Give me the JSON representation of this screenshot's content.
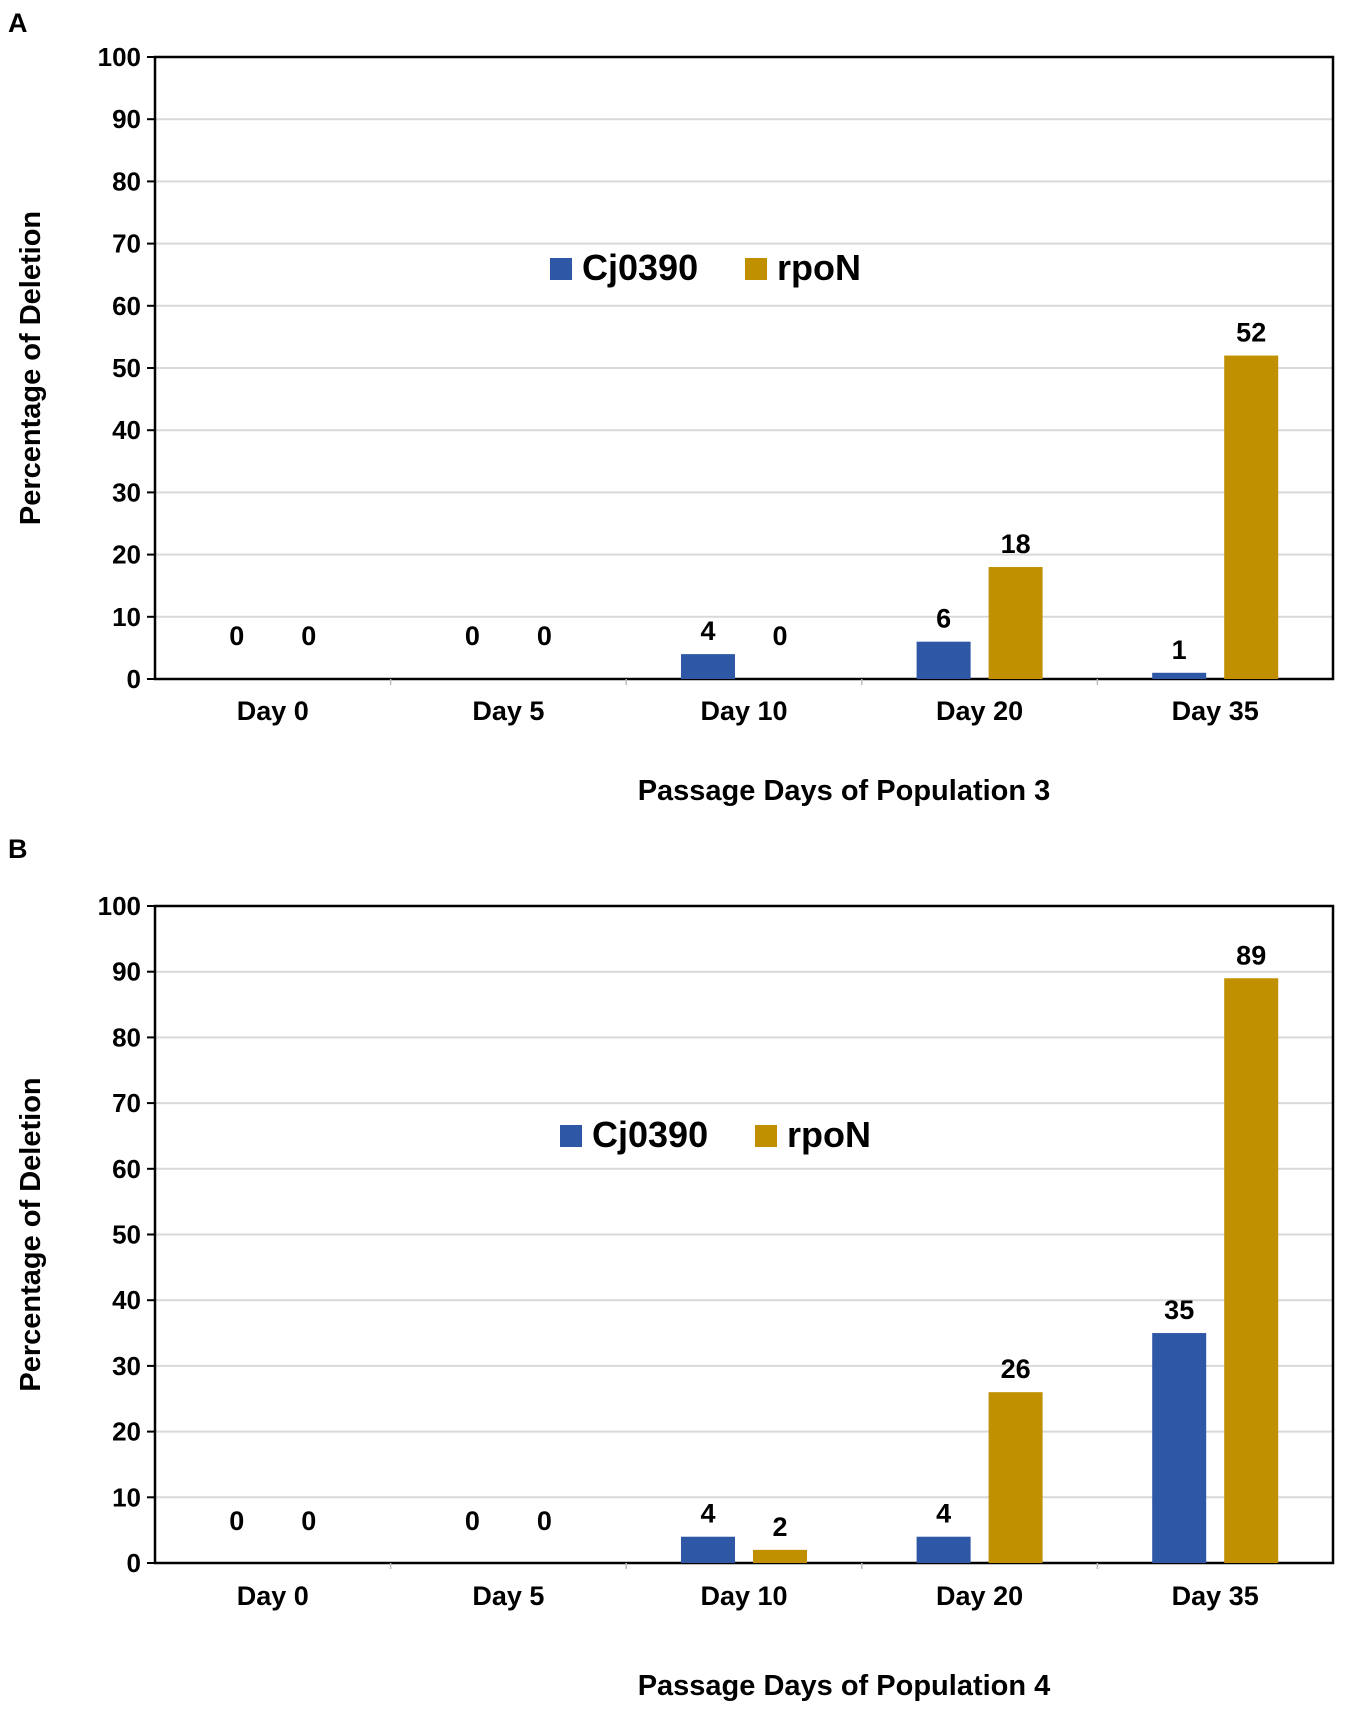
{
  "chart_data": [
    {
      "panel_label": "A",
      "type": "bar",
      "title": "",
      "xlabel": "Passage Days of Population 3",
      "ylabel": "Percentage of Deletion",
      "ylim": [
        0,
        100
      ],
      "yticks": [
        0,
        10,
        20,
        30,
        40,
        50,
        60,
        70,
        80,
        90,
        100
      ],
      "grid": true,
      "legend_position": "upper-center",
      "categories": [
        "Day 0",
        "Day 5",
        "Day 10",
        "Day 20",
        "Day 35"
      ],
      "series": [
        {
          "name": "Cj0390",
          "color": "#2E58A6",
          "values": [
            0,
            0,
            4,
            6,
            1
          ]
        },
        {
          "name": "rpoN",
          "color": "#C09000",
          "values": [
            0,
            0,
            0,
            18,
            52
          ]
        }
      ]
    },
    {
      "panel_label": "B",
      "type": "bar",
      "title": "",
      "xlabel": "Passage Days of Population 4",
      "ylabel": "Percentage of Deletion",
      "ylim": [
        0,
        100
      ],
      "yticks": [
        0,
        10,
        20,
        30,
        40,
        50,
        60,
        70,
        80,
        90,
        100
      ],
      "grid": true,
      "legend_position": "upper-center",
      "categories": [
        "Day 0",
        "Day 5",
        "Day 10",
        "Day 20",
        "Day 35"
      ],
      "series": [
        {
          "name": "Cj0390",
          "color": "#2E58A6",
          "values": [
            0,
            0,
            4,
            4,
            35
          ]
        },
        {
          "name": "rpoN",
          "color": "#C09000",
          "values": [
            0,
            0,
            2,
            26,
            89
          ]
        }
      ]
    }
  ]
}
